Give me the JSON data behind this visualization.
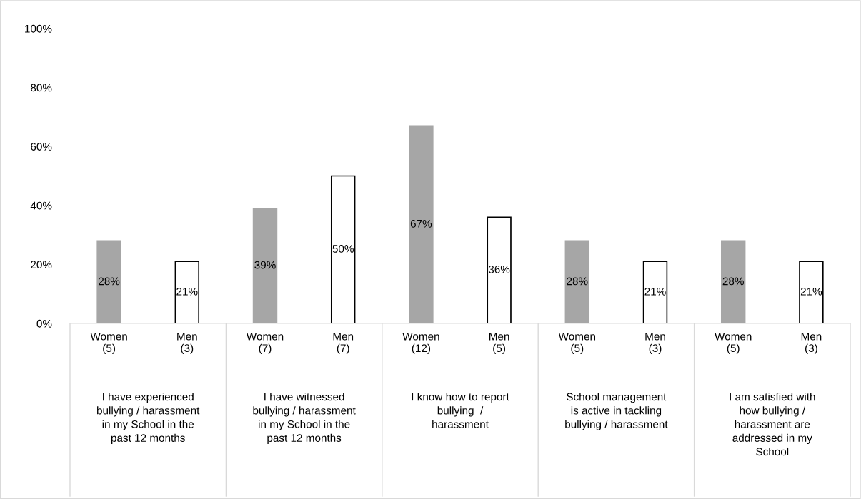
{
  "chart_data": {
    "type": "bar",
    "categories": [
      "Women\n(5)",
      "Men\n(3)",
      "Women\n(7)",
      "Men\n(7)",
      "Women\n(12)",
      "Men\n(5)",
      "Women\n(5)",
      "Men\n(3)",
      "Women\n(5)",
      "Men\n(3)"
    ],
    "values": [
      28,
      21,
      39,
      50,
      67,
      36,
      28,
      21,
      28,
      21
    ],
    "colors": [
      "#a6a6a6",
      "#ffffff",
      "#a6a6a6",
      "#ffffff",
      "#a6a6a6",
      "#ffffff",
      "#a6a6a6",
      "#ffffff",
      "#a6a6a6",
      "#ffffff"
    ],
    "value_labels": [
      "28%",
      "21%",
      "39%",
      "50%",
      "67%",
      "36%",
      "28%",
      "21%",
      "28%",
      "21%"
    ],
    "ylim": [
      0,
      100
    ],
    "yticks": [
      {
        "value": 0,
        "label": "0%"
      },
      {
        "value": 20,
        "label": "20%"
      },
      {
        "value": 40,
        "label": "40%"
      },
      {
        "value": 60,
        "label": "60%"
      },
      {
        "value": 80,
        "label": "80%"
      },
      {
        "value": 100,
        "label": "100%"
      }
    ],
    "grid": false,
    "legend": false,
    "annotations": [
      "I have experienced\nbullying / harassment\nin my School in the\npast 12 months",
      "I have witnessed\nbullying / harassment\nin my School in the\npast 12 months",
      "I know how to report\nbullying  /\nharassment",
      "School management\nis active in tackling\nbullying / harassment",
      "I am satisfied with\nhow bullying /\nharassment are\naddressed in my\nSchool"
    ]
  }
}
